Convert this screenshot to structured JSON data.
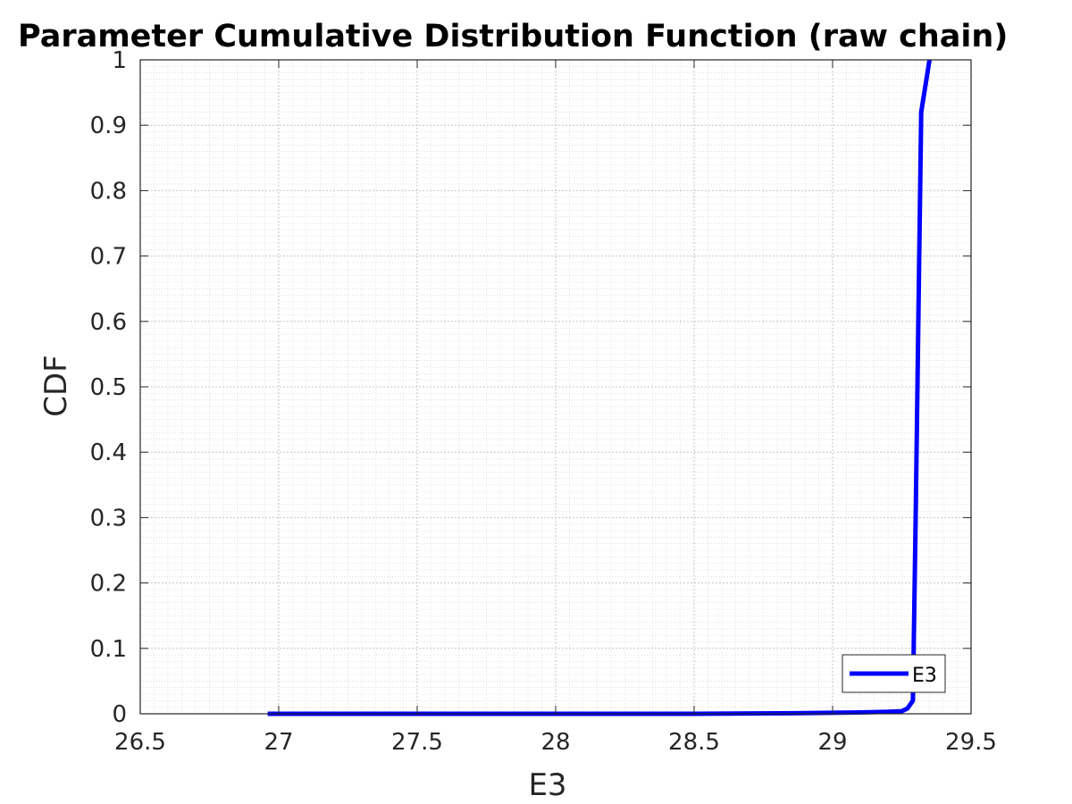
{
  "chart_data": {
    "type": "line",
    "title": "Parameter Cumulative Distribution Function (raw chain)",
    "xlabel": "E3",
    "ylabel": "CDF",
    "xlim": [
      26.5,
      29.5
    ],
    "ylim": [
      0,
      1
    ],
    "xticks": [
      "26.5",
      "27",
      "27.5",
      "28",
      "28.5",
      "29",
      "29.5"
    ],
    "yticks": [
      "0",
      "0.1",
      "0.2",
      "0.3",
      "0.4",
      "0.5",
      "0.6",
      "0.7",
      "0.8",
      "0.9",
      "1"
    ],
    "grid": "on (major and minor)",
    "legend_position": "bottom-right",
    "series": [
      {
        "name": "E3",
        "color": "#0000ff",
        "x": [
          26.96,
          27.5,
          28.0,
          28.5,
          28.9,
          29.1,
          29.2,
          29.25,
          29.27,
          29.29,
          29.3,
          29.32,
          29.35
        ],
        "y": [
          0.0,
          0.0,
          0.0,
          0.0,
          0.001,
          0.002,
          0.003,
          0.004,
          0.008,
          0.02,
          0.3,
          0.92,
          1.0
        ]
      }
    ]
  }
}
